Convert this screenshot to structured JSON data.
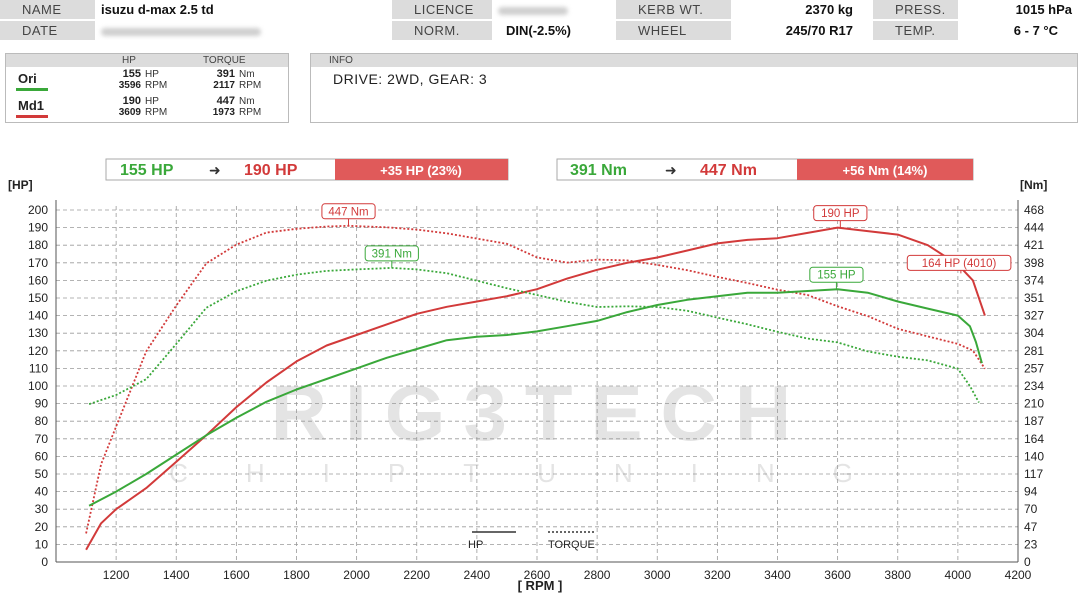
{
  "header": {
    "name_label": "NAME",
    "name_value": "isuzu d-max 2.5 td",
    "licence_label": "LICENCE",
    "kerb_label": "KERB WT.",
    "kerb_value": "2370 kg",
    "press_label": "PRESS.",
    "press_value": "1015 hPa",
    "date_label": "DATE",
    "norm_label": "NORM.",
    "norm_value": "DIN(-2.5%)",
    "wheel_label": "WHEEL",
    "wheel_value": "245/70 R17",
    "temp_label": "TEMP.",
    "temp_value": "6 - 7 °C"
  },
  "legend": {
    "hp_header": "HP",
    "torque_header": "TORQUE",
    "rows": [
      {
        "name": "Ori",
        "color": "#3aa83a",
        "hp": "155",
        "hp_unit": "HP",
        "hp_rpm": "3596",
        "rpm_unit": "RPM",
        "torque": "391",
        "torque_unit": "Nm",
        "torque_rpm": "2117"
      },
      {
        "name": "Md1",
        "color": "#d23a3a",
        "hp": "190",
        "hp_unit": "HP",
        "hp_rpm": "3609",
        "rpm_unit": "RPM",
        "torque": "447",
        "torque_unit": "Nm",
        "torque_rpm": "1973"
      }
    ]
  },
  "info": {
    "title": "INFO",
    "text": "DRIVE: 2WD,  GEAR: 3"
  },
  "summary": {
    "hp_from": "155 HP",
    "hp_to": "190 HP",
    "hp_gain": "+35 HP  (23%)",
    "nm_from": "391 Nm",
    "nm_to": "447 Nm",
    "nm_gain": "+56 Nm  (14%)",
    "arrow": "➜"
  },
  "watermark": {
    "line1": "RIG3TECH",
    "line2": "CHIPTUNING"
  },
  "colors": {
    "ori": "#3aa83a",
    "md1": "#d23a3a",
    "gain_bg": "#e05a5a",
    "grid": "#9a9a9a"
  },
  "chart_data": {
    "type": "line",
    "xlabel": "[ RPM ]",
    "ylabel_left": "[HP]",
    "ylabel_right": "[Nm]",
    "xlim": [
      1000,
      4200
    ],
    "ylim": [
      0,
      200
    ],
    "x_ticks": [
      1200,
      1400,
      1600,
      1800,
      2000,
      2200,
      2400,
      2600,
      2800,
      3000,
      3200,
      3400,
      3600,
      3800,
      4000,
      4200
    ],
    "y_ticks": [
      0,
      10,
      20,
      30,
      40,
      50,
      60,
      70,
      80,
      90,
      100,
      110,
      120,
      130,
      140,
      150,
      160,
      170,
      180,
      190,
      200
    ],
    "right_ticks": [
      "0",
      "23",
      "47",
      "70",
      "94",
      "117",
      "140",
      "164",
      "187",
      "210",
      "234",
      "257",
      "281",
      "304",
      "327",
      "351",
      "374",
      "398",
      "421",
      "444",
      "468"
    ],
    "grid": true,
    "legend_inline": {
      "hp": "HP",
      "torque": "TORQUE"
    },
    "series": [
      {
        "name": "Md1",
        "kind": "HP",
        "x": [
          1100,
          1150,
          1200,
          1300,
          1400,
          1500,
          1600,
          1700,
          1800,
          1900,
          2000,
          2100,
          2200,
          2300,
          2400,
          2500,
          2600,
          2700,
          2800,
          2900,
          3000,
          3100,
          3200,
          3300,
          3400,
          3500,
          3600,
          3700,
          3800,
          3900,
          4000,
          4050,
          4090
        ],
        "y": [
          7,
          22,
          30,
          42,
          57,
          72,
          88,
          102,
          114,
          123,
          129,
          135,
          141,
          145,
          148,
          151,
          155,
          161,
          166,
          170,
          173,
          177,
          181,
          183,
          184,
          187,
          190,
          188,
          186,
          180,
          169,
          160,
          140
        ]
      },
      {
        "name": "Md1",
        "kind": "TORQUE",
        "x": [
          1100,
          1150,
          1200,
          1300,
          1400,
          1500,
          1600,
          1700,
          1800,
          1900,
          1973,
          2100,
          2200,
          2300,
          2400,
          2500,
          2600,
          2700,
          2800,
          2900,
          3000,
          3100,
          3200,
          3300,
          3400,
          3500,
          3600,
          3700,
          3800,
          3900,
          4000,
          4050,
          4090
        ],
        "y": [
          38,
          130,
          180,
          280,
          341,
          397,
          422,
          438,
          443,
          446,
          447,
          445,
          442,
          437,
          430,
          423,
          405,
          398,
          402,
          401,
          395,
          388,
          379,
          371,
          362,
          355,
          340,
          327,
          310,
          300,
          290,
          281,
          257
        ]
      },
      {
        "name": "Ori",
        "kind": "HP",
        "x": [
          1110,
          1200,
          1300,
          1400,
          1500,
          1600,
          1700,
          1800,
          1900,
          2000,
          2100,
          2200,
          2300,
          2400,
          2500,
          2600,
          2700,
          2800,
          2900,
          3000,
          3100,
          3200,
          3300,
          3400,
          3500,
          3600,
          3700,
          3800,
          3900,
          4000,
          4040,
          4060,
          4080
        ],
        "y": [
          32,
          40,
          50,
          61,
          72,
          82,
          91,
          98,
          104,
          110,
          116,
          121,
          126,
          128,
          129,
          131,
          134,
          137,
          142,
          146,
          149,
          151,
          153,
          153,
          154,
          155,
          153,
          148,
          144,
          140,
          134,
          125,
          113
        ]
      },
      {
        "name": "Ori",
        "kind": "TORQUE",
        "x": [
          1110,
          1200,
          1300,
          1400,
          1500,
          1600,
          1700,
          1800,
          1900,
          2000,
          2117,
          2200,
          2300,
          2400,
          2500,
          2600,
          2700,
          2800,
          2900,
          3000,
          3100,
          3200,
          3300,
          3400,
          3500,
          3600,
          3700,
          3800,
          3900,
          4000,
          4040,
          4070
        ],
        "y": [
          210,
          222,
          243,
          290,
          338,
          360,
          374,
          382,
          387,
          389,
          391,
          389,
          384,
          374,
          364,
          355,
          346,
          339,
          340,
          339,
          334,
          325,
          316,
          306,
          297,
          292,
          280,
          273,
          268,
          257,
          234,
          212
        ]
      }
    ],
    "annotations": [
      {
        "text": "447 Nm",
        "series": "Md1",
        "x": 1973,
        "y": 447,
        "axis": "torque"
      },
      {
        "text": "391 Nm",
        "series": "Ori",
        "x": 2117,
        "y": 391,
        "axis": "torque"
      },
      {
        "text": "190 HP",
        "series": "Md1",
        "x": 3609,
        "y": 190,
        "axis": "hp"
      },
      {
        "text": "155 HP",
        "series": "Ori",
        "x": 3596,
        "y": 155,
        "axis": "hp"
      },
      {
        "text": "164 HP (4010)",
        "series": "Md1",
        "x": 4010,
        "y": 164,
        "axis": "hp"
      }
    ]
  }
}
